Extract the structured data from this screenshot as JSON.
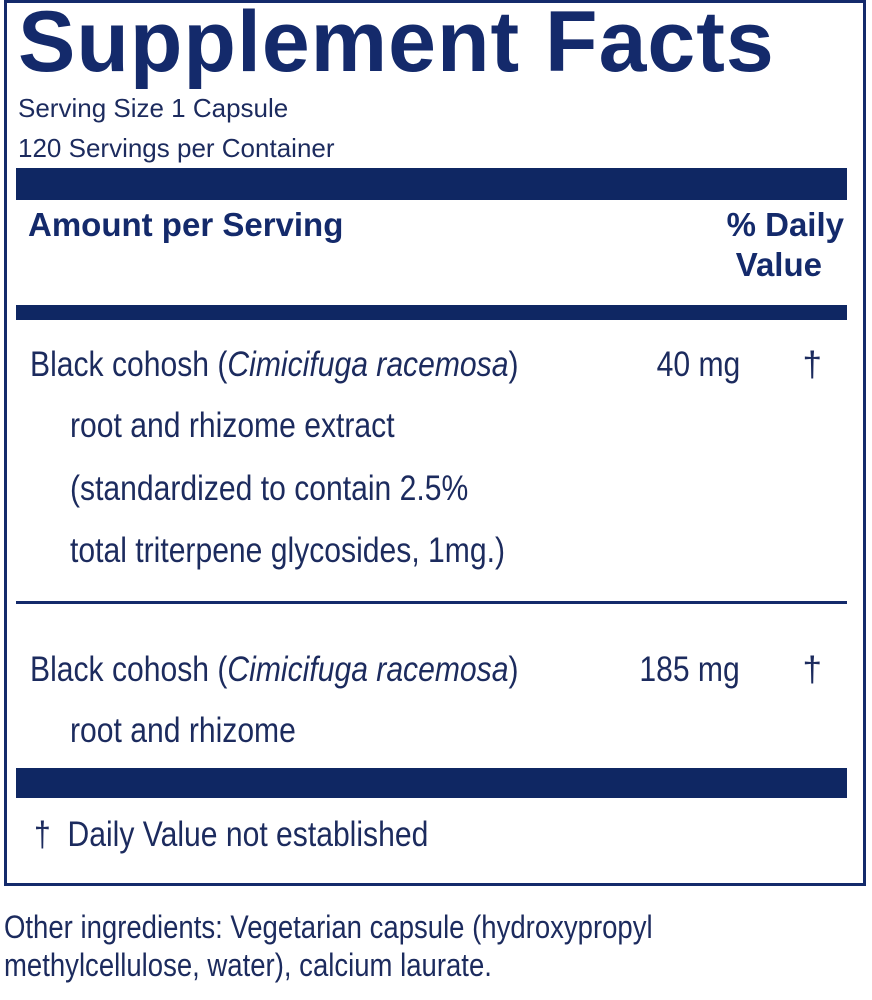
{
  "label": {
    "title": "Supplement Facts",
    "serving_size": "Serving Size 1 Capsule",
    "servings_per_container": "120 Servings per Container",
    "header": {
      "amount": "Amount per Serving",
      "dv_line1": "% Daily",
      "dv_line2": "Value"
    },
    "rows": [
      {
        "name": "Black cohosh (",
        "latin": "Cimicifuga racemosa",
        "name_end": ")",
        "amount": "40 mg",
        "dv": "†",
        "details": [
          "root and rhizome extract",
          "(standardized to contain 2.5%",
          "total triterpene glycosides, 1mg.)"
        ]
      },
      {
        "name": "Black cohosh (",
        "latin": "Cimicifuga racemosa",
        "name_end": ")",
        "amount": "185 mg",
        "dv": "†",
        "details": [
          "root and rhizome"
        ]
      }
    ],
    "footnote": "†  Daily Value not established"
  },
  "other_ingredients": {
    "line1": "Other ingredients: Vegetarian capsule (hydroxypropyl",
    "line2": "methylcellulose, water), calcium laurate."
  },
  "colors": {
    "navy": "#142a6b",
    "text": "#1c2b5e"
  }
}
